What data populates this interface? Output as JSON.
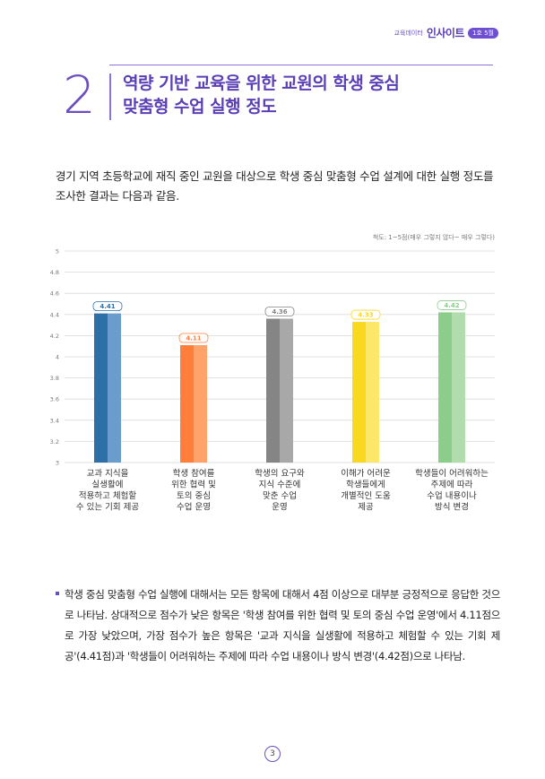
{
  "header": {
    "brand_sub": "교육데이터",
    "brand_main": "인사이트",
    "issue_badge": "1호 5월"
  },
  "section": {
    "number": "2",
    "title_line1": "역량 기반 교육을 위한 교원의 학생 중심",
    "title_line2": "맞춤형 수업 실행 정도"
  },
  "intro_text": "경기 지역 초등학교에 재직 중인 교원을 대상으로 학생 중심 맞춤형 수업 설계에 대한 실행 정도를 조사한 결과는 다음과 같음.",
  "scale_note": "척도: 1~5점(매우 그렇지 않다~ 매우 그렇다)",
  "chart_data": {
    "type": "bar",
    "ylim": [
      3,
      5
    ],
    "yticks": [
      "3",
      "3.2",
      "3.4",
      "3.6",
      "3.8",
      "4",
      "4.2",
      "4.4",
      "4.6",
      "4.8",
      "5"
    ],
    "categories": [
      [
        "교과 지식을",
        "실생활에",
        "적용하고 체험할",
        "수 있는 기회 제공"
      ],
      [
        "학생 참여를",
        "위한 협력 및",
        "토의 중심",
        "수업 운영"
      ],
      [
        "학생의 요구와",
        "지식 수준에",
        "맞춘 수업",
        "운영"
      ],
      [
        "이해가 어려운",
        "학생들에게",
        "개별적인 도움",
        "제공"
      ],
      [
        "학생들이 어려워하는",
        "주제에 따라",
        "수업 내용이나",
        "방식 변경"
      ]
    ],
    "values": [
      4.41,
      4.11,
      4.36,
      4.33,
      4.42
    ],
    "value_labels": [
      "4.41",
      "4.11",
      "4.36",
      "4.33",
      "4.42"
    ],
    "colors": [
      [
        "#2e6fa8",
        "#6a9ccc"
      ],
      [
        "#ff7f3a",
        "#ffa36b"
      ],
      [
        "#858585",
        "#a8a8a8"
      ],
      [
        "#f9d821",
        "#fde768"
      ],
      [
        "#8ccd8c",
        "#b0dcae"
      ]
    ]
  },
  "summary_text": "학생 중심 맞춤형 수업 실행에 대해서는 모든 항목에 대해서 4점 이상으로 대부분 긍정적으로 응답한 것으로 나타남. 상대적으로 점수가 낮은 항목은 '학생 참여를 위한 협력 및 토의 중심 수업 운영'에서 4.11점으로 가장 낮았으며, 가장 점수가 높은 항목은 '교과 지식을 실생활에 적용하고 체험할 수 있는 기회 제공'(4.41점)과 '학생들이 어려워하는 주제에 따라 수업 내용이나 방식 변경'(4.42점)으로 나타남.",
  "page_number": "3"
}
